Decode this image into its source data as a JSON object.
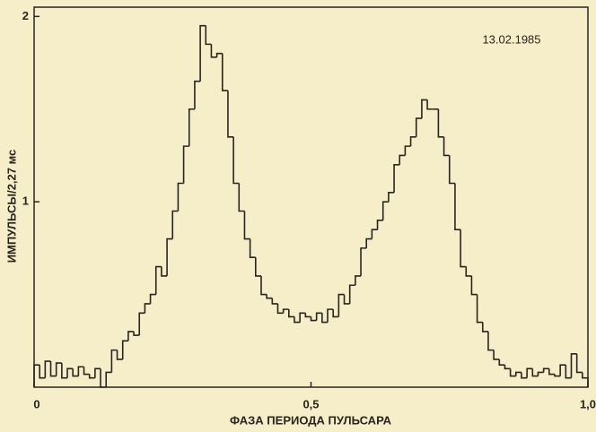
{
  "chart_data": {
    "type": "step",
    "date": "13.02.1985",
    "xlabel": "ФАЗА ПЕРИОДА ПУЛЬСАРА",
    "ylabel": "ИМПУЛЬСЫ/2,27 мс",
    "color": "#2a2420",
    "bins": [
      0,
      0.01,
      0.02,
      0.03,
      0.04,
      0.05,
      0.06,
      0.07,
      0.08,
      0.09,
      0.1,
      0.11,
      0.12,
      0.13,
      0.14,
      0.15,
      0.16,
      0.17,
      0.18,
      0.19,
      0.2,
      0.21,
      0.22,
      0.23,
      0.24,
      0.25,
      0.26,
      0.27,
      0.28,
      0.29,
      0.3,
      0.31,
      0.32,
      0.33,
      0.34,
      0.35,
      0.36,
      0.37,
      0.38,
      0.39,
      0.4,
      0.41,
      0.42,
      0.43,
      0.44,
      0.45,
      0.46,
      0.47,
      0.48,
      0.49,
      0.5,
      0.51,
      0.52,
      0.53,
      0.54,
      0.55,
      0.56,
      0.57,
      0.58,
      0.59,
      0.6,
      0.61,
      0.62,
      0.63,
      0.64,
      0.65,
      0.66,
      0.67,
      0.68,
      0.69,
      0.7,
      0.71,
      0.72,
      0.73,
      0.74,
      0.75,
      0.76,
      0.77,
      0.78,
      0.79,
      0.8,
      0.81,
      0.82,
      0.83,
      0.84,
      0.85,
      0.86,
      0.87,
      0.88,
      0.89,
      0.9,
      0.91,
      0.92,
      0.93,
      0.94,
      0.95,
      0.96,
      0.97,
      0.98,
      0.99,
      1
    ],
    "counts": [
      0.12,
      0.05,
      0.14,
      0.06,
      0.13,
      0.05,
      0.1,
      0.06,
      0.11,
      0.07,
      0.05,
      0.1,
      0.0,
      0.08,
      0.2,
      0.15,
      0.25,
      0.3,
      0.28,
      0.4,
      0.45,
      0.5,
      0.65,
      0.6,
      0.8,
      0.95,
      1.1,
      1.3,
      1.5,
      1.65,
      1.95,
      1.85,
      1.78,
      1.8,
      1.6,
      1.35,
      1.1,
      0.95,
      0.8,
      0.7,
      0.6,
      0.5,
      0.48,
      0.45,
      0.4,
      0.42,
      0.38,
      0.35,
      0.4,
      0.38,
      0.36,
      0.4,
      0.35,
      0.42,
      0.38,
      0.5,
      0.45,
      0.55,
      0.6,
      0.75,
      0.8,
      0.85,
      0.9,
      1.0,
      1.05,
      1.2,
      1.25,
      1.3,
      1.35,
      1.45,
      1.55,
      1.5,
      1.5,
      1.35,
      1.25,
      1.1,
      0.85,
      0.65,
      0.6,
      0.5,
      0.35,
      0.3,
      0.2,
      0.15,
      0.12,
      0.1,
      0.06,
      0.08,
      0.05,
      0.1,
      0.06,
      0.08,
      0.1,
      0.07,
      0.06,
      0.12,
      0.05,
      0.18,
      0.08,
      0.05
    ],
    "xlim": [
      0,
      1
    ],
    "ylim": [
      0,
      2.05
    ],
    "xticks": [
      0,
      {
        "value": 0.5,
        "label": "0,5"
      },
      {
        "value": 1,
        "label": "1,0"
      }
    ],
    "yticks": [
      1,
      2
    ]
  }
}
